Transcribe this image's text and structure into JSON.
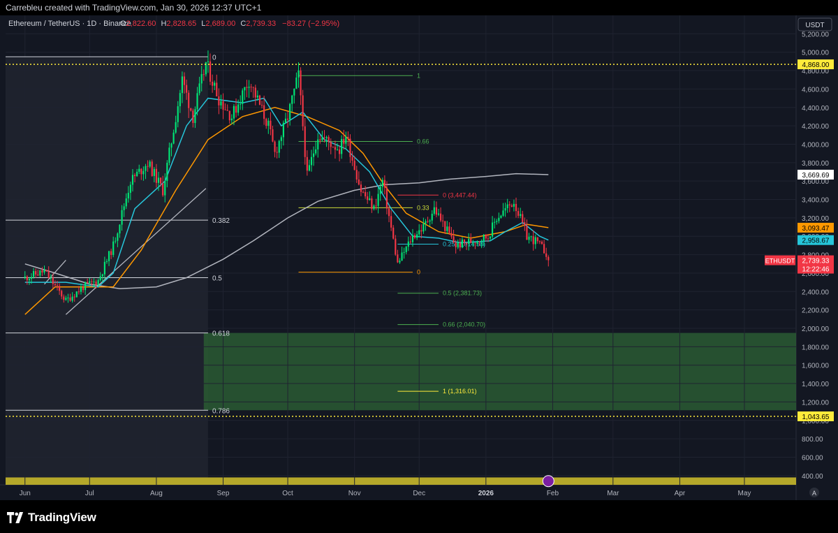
{
  "header": {
    "credit": "Carrebleu created with TradingView.com, Jan 30, 2026 12:37 UTC+1"
  },
  "legend": {
    "symbol": "Ethereum / TetherUS · 1D · Binance",
    "o_label": "O",
    "o_value": "2,822.60",
    "h_label": "H",
    "h_value": "2,828.65",
    "l_label": "L",
    "l_value": "2,689.00",
    "c_label": "C",
    "c_value": "2,739.33",
    "change": "−83.27 (−2.95%)"
  },
  "footer": {
    "brand": "TradingView",
    "auto_label": "A"
  },
  "colors": {
    "background": "#131722",
    "up": "#00e676",
    "down": "#f23645",
    "ma_short": "#26c6da",
    "ma_mid": "#ff9800",
    "ma_long": "#b2b5be",
    "zone": "#2a5a32",
    "bottom_band": "#b5a82a",
    "dotted_level": "#ffeb3b"
  },
  "chart_data": {
    "type": "candlestick",
    "symbol": "ETHUSDT",
    "currency": "USDT",
    "ylim": [
      300,
      5400
    ],
    "y_ticks": [
      400,
      600,
      800,
      1000,
      1200,
      1400,
      1600,
      1800,
      2000,
      2200,
      2400,
      2600,
      2800,
      3000,
      3200,
      3400,
      3600,
      3800,
      4000,
      4200,
      4400,
      4600,
      4800,
      5000,
      5200
    ],
    "x_ticks": [
      "Jun",
      "Jul",
      "Aug",
      "Sep",
      "Oct",
      "Nov",
      "Dec",
      "2026",
      "Feb",
      "Mar",
      "Apr",
      "May"
    ],
    "price_path": [
      [
        "2025-06-01",
        2550
      ],
      [
        "2025-06-10",
        2620
      ],
      [
        "2025-06-20",
        2300
      ],
      [
        "2025-06-28",
        2450
      ],
      [
        "2025-07-05",
        2520
      ],
      [
        "2025-07-12",
        2900
      ],
      [
        "2025-07-20",
        3600
      ],
      [
        "2025-07-28",
        3800
      ],
      [
        "2025-08-04",
        3500
      ],
      [
        "2025-08-13",
        4700
      ],
      [
        "2025-08-18",
        4300
      ],
      [
        "2025-08-24",
        4880
      ],
      [
        "2025-08-30",
        4500
      ],
      [
        "2025-09-05",
        4300
      ],
      [
        "2025-09-13",
        4700
      ],
      [
        "2025-09-22",
        4200
      ],
      [
        "2025-09-25",
        3900
      ],
      [
        "2025-10-01",
        4300
      ],
      [
        "2025-10-06",
        4750
      ],
      [
        "2025-10-10",
        3650
      ],
      [
        "2025-10-15",
        4100
      ],
      [
        "2025-10-25",
        3950
      ],
      [
        "2025-10-28",
        4100
      ],
      [
        "2025-11-04",
        3500
      ],
      [
        "2025-11-10",
        3300
      ],
      [
        "2025-11-14",
        3600
      ],
      [
        "2025-11-21",
        2700
      ],
      [
        "2025-11-28",
        3000
      ],
      [
        "2025-12-03",
        3100
      ],
      [
        "2025-12-08",
        3300
      ],
      [
        "2025-12-18",
        2900
      ],
      [
        "2026-01-02",
        3000
      ],
      [
        "2026-01-06",
        3200
      ],
      [
        "2026-01-14",
        3380
      ],
      [
        "2026-01-20",
        3000
      ],
      [
        "2026-01-24",
        2950
      ],
      [
        "2026-01-29",
        2822
      ],
      [
        "2026-01-30",
        2739
      ]
    ],
    "ma_short_path": [
      [
        "2025-06-01",
        2500
      ],
      [
        "2025-06-20",
        2500
      ],
      [
        "2025-07-05",
        2450
      ],
      [
        "2025-07-12",
        2600
      ],
      [
        "2025-07-22",
        3300
      ],
      [
        "2025-08-05",
        3600
      ],
      [
        "2025-08-15",
        4200
      ],
      [
        "2025-08-25",
        4500
      ],
      [
        "2025-09-10",
        4450
      ],
      [
        "2025-09-20",
        4500
      ],
      [
        "2025-09-28",
        4200
      ],
      [
        "2025-10-08",
        4350
      ],
      [
        "2025-10-18",
        4050
      ],
      [
        "2025-10-28",
        3950
      ],
      [
        "2025-11-08",
        3700
      ],
      [
        "2025-11-18",
        3300
      ],
      [
        "2025-11-28",
        3000
      ],
      [
        "2025-12-10",
        2980
      ],
      [
        "2025-12-20",
        2930
      ],
      [
        "2026-01-03",
        2950
      ],
      [
        "2026-01-10",
        3050
      ],
      [
        "2026-01-18",
        3150
      ],
      [
        "2026-01-26",
        3000
      ],
      [
        "2026-01-30",
        2958.67
      ]
    ],
    "ma_mid_path": [
      [
        "2025-06-01",
        2150
      ],
      [
        "2025-06-15",
        2450
      ],
      [
        "2025-07-01",
        2450
      ],
      [
        "2025-07-12",
        2450
      ],
      [
        "2025-07-25",
        2850
      ],
      [
        "2025-08-10",
        3500
      ],
      [
        "2025-08-25",
        4050
      ],
      [
        "2025-09-10",
        4300
      ],
      [
        "2025-09-25",
        4400
      ],
      [
        "2025-10-10",
        4300
      ],
      [
        "2025-10-25",
        4150
      ],
      [
        "2025-11-05",
        3900
      ],
      [
        "2025-11-15",
        3550
      ],
      [
        "2025-11-25",
        3250
      ],
      [
        "2025-12-10",
        3050
      ],
      [
        "2025-12-25",
        2980
      ],
      [
        "2026-01-10",
        3050
      ],
      [
        "2026-01-20",
        3130
      ],
      [
        "2026-01-30",
        3093.47
      ]
    ],
    "ma_long_path": [
      [
        "2025-06-01",
        2700
      ],
      [
        "2025-06-15",
        2600
      ],
      [
        "2025-07-01",
        2480
      ],
      [
        "2025-07-15",
        2430
      ],
      [
        "2025-08-01",
        2450
      ],
      [
        "2025-08-15",
        2550
      ],
      [
        "2025-09-01",
        2750
      ],
      [
        "2025-09-15",
        2950
      ],
      [
        "2025-10-01",
        3200
      ],
      [
        "2025-10-15",
        3380
      ],
      [
        "2025-11-01",
        3500
      ],
      [
        "2025-11-15",
        3560
      ],
      [
        "2025-12-01",
        3580
      ],
      [
        "2025-12-15",
        3620
      ],
      [
        "2026-01-01",
        3650
      ],
      [
        "2026-01-15",
        3680
      ],
      [
        "2026-01-30",
        3669.69
      ]
    ],
    "fib_left": {
      "levels": [
        {
          "label": "0",
          "price": 4950
        },
        {
          "label": "0.382",
          "price": 3175
        },
        {
          "label": "0.5",
          "price": 2550
        },
        {
          "label": "0.618",
          "price": 1950
        },
        {
          "label": "0.786",
          "price": 1110
        }
      ]
    },
    "fib_top": {
      "levels": [
        {
          "label": "1",
          "price": 4745,
          "color": "#4caf50"
        },
        {
          "label": "0.66",
          "price": 4030,
          "color": "#4caf50"
        },
        {
          "label": "0.33",
          "price": 3310,
          "color": "#cddc39"
        },
        {
          "label": "0",
          "price": 2610,
          "color": "#ff9800"
        }
      ]
    },
    "fib_ext": {
      "levels": [
        {
          "label": "0 (3,447.44)",
          "price": 3447.44,
          "color": "#f23645"
        },
        {
          "label": "0.25 (2,914.58)",
          "price": 2914.58,
          "color": "#26c6da"
        },
        {
          "label": "0.5 (2,381.73)",
          "price": 2381.73,
          "color": "#4caf50"
        },
        {
          "label": "0.66 (2,040.70)",
          "price": 2040.7,
          "color": "#4caf50"
        },
        {
          "label": "1 (1,316.01)",
          "price": 1316.01,
          "color": "#ffeb3b"
        }
      ]
    },
    "zone": {
      "top": 1950,
      "bottom": 1110
    },
    "horizontal_levels": [
      4868.0,
      1043.65
    ],
    "bottom_band": {
      "top": 380,
      "bottom": 300
    },
    "right_labels": [
      {
        "text": "4,868.00",
        "price": 4868.0,
        "bg": "#ffeb3b",
        "fg": "#000"
      },
      {
        "text": "3,669.69",
        "price": 3669.69,
        "bg": "#ffffff",
        "fg": "#000"
      },
      {
        "text": "3,093.47",
        "price": 3093.47,
        "bg": "#ff9800",
        "fg": "#000"
      },
      {
        "text": "2,958.67",
        "price": 2958.67,
        "bg": "#26c6da",
        "fg": "#000"
      },
      {
        "text": "1,043.65",
        "price": 1043.65,
        "bg": "#ffeb3b",
        "fg": "#000"
      }
    ],
    "last_price": {
      "text": "2,739.33",
      "countdown": "12:22:46",
      "symbol_label": "ETHUSDT",
      "price": 2739.33
    }
  }
}
